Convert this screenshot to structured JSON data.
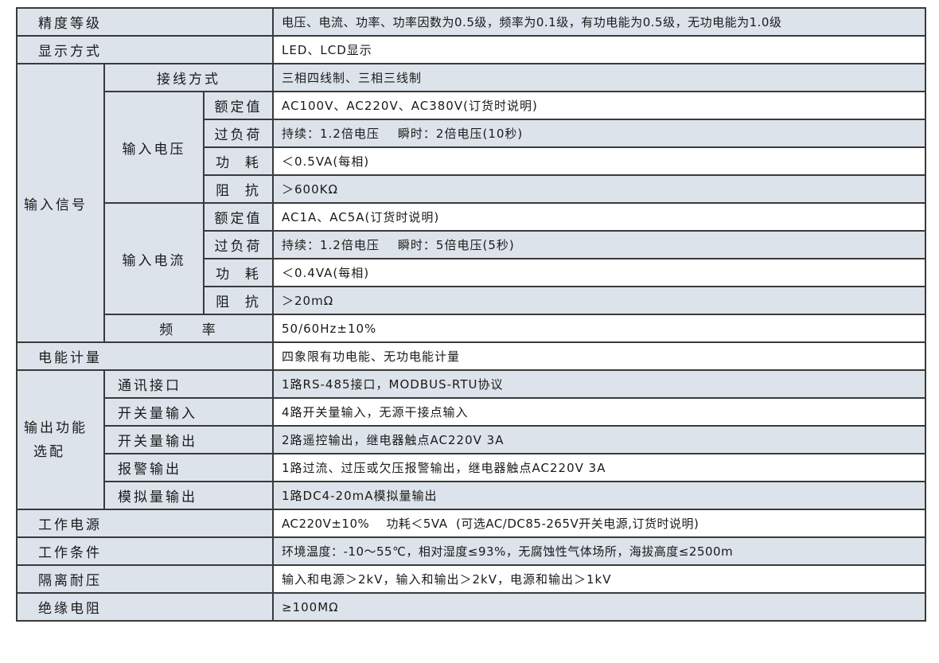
{
  "labels": {
    "accuracy": "精度等级",
    "display": "显示方式",
    "input_signal": "输入信号",
    "wiring": "接线方式",
    "input_voltage": "输入电压",
    "input_current": "输入电流",
    "rated": "额定值",
    "overload": "过负荷",
    "power": "功  耗",
    "impedance": "阻  抗",
    "frequency": "频    率",
    "energy": "电能计量",
    "output": "输出功能",
    "output2": "选配",
    "comm": "通讯接口",
    "di": "开关量输入",
    "do": "开关量输出",
    "alarm": "报警输出",
    "analog": "模拟量输出",
    "supply": "工作电源",
    "conditions": "工作条件",
    "isolation": "隔离耐压",
    "insulation": "绝缘电阻"
  },
  "values": {
    "accuracy": "电压、电流、功率、功率因数为0.5级，频率为0.1级，有功电能为0.5级，无功电能为1.0级",
    "display": "LED、LCD显示",
    "wiring": "三相四线制、三相三线制",
    "v_rated": "AC100V、AC220V、AC380V(订货时说明)",
    "v_overload": "持续：1.2倍电压    瞬时：2倍电压(10秒)",
    "v_power": "＜0.5VA(每相)",
    "v_impedance": "＞600KΩ",
    "i_rated": "AC1A、AC5A(订货时说明)",
    "i_overload": "持续：1.2倍电压    瞬时：5倍电压(5秒)",
    "i_power": "＜0.4VA(每相)",
    "i_impedance": "＞20mΩ",
    "frequency": "50/60Hz±10%",
    "energy": "四象限有功电能、无功电能计量",
    "comm": "1路RS-485接口，MODBUS-RTU协议",
    "di": "4路开关量输入，无源干接点输入",
    "do": "2路遥控输出，继电器触点AC220V 3A",
    "alarm": "1路过流、过压或欠压报警输出，继电器触点AC220V 3A",
    "analog": "1路DC4-20mA模拟量输出",
    "supply": "AC220V±10%    功耗＜5VA  (可选AC/DC85-265V开关电源,订货时说明)",
    "conditions": "环境温度：-10～55℃，相对湿度≤93%，无腐蚀性气体场所，海拔高度≤2500m",
    "isolation": "输入和电源＞2kV，输入和输出＞2kV，电源和输出＞1kV",
    "insulation": "≥100MΩ"
  },
  "colors": {
    "shade": "#dde3ea",
    "border": "#3a3a3a"
  }
}
